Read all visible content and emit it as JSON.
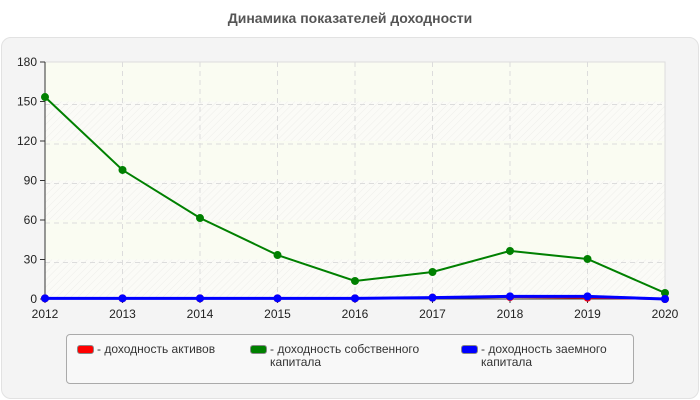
{
  "title": "Динамика показателей доходности",
  "chart_data": {
    "type": "line",
    "title": "Динамика показателей доходности",
    "xlabel": "",
    "ylabel": "",
    "categories": [
      "2012",
      "2013",
      "2014",
      "2015",
      "2016",
      "2017",
      "2018",
      "2019",
      "2020"
    ],
    "ylim": [
      0,
      180
    ],
    "yticks": [
      0,
      30,
      60,
      90,
      120,
      150,
      180
    ],
    "grid": true,
    "legend_position": "bottom",
    "series": [
      {
        "name": "доходность активов",
        "color": "#ff0000",
        "values": [
          0.5,
          0.5,
          0.5,
          0.5,
          0.5,
          1.0,
          1.5,
          1.0,
          0.0
        ]
      },
      {
        "name": "доходность собственного капитала",
        "color": "#008000",
        "values": [
          153.4,
          98.0,
          61.5,
          33.4,
          13.7,
          20.5,
          36.5,
          30.4,
          4.6
        ]
      },
      {
        "name": "доходность заемного капитала",
        "color": "#0000ff",
        "values": [
          0.5,
          0.5,
          0.5,
          0.5,
          0.5,
          1.0,
          2.0,
          2.0,
          0.0
        ]
      }
    ]
  },
  "legend": {
    "items": [
      {
        "label": "- доходность активов",
        "color": "#ff0000"
      },
      {
        "label": "- доходность собственного капитала",
        "color": "#008000"
      },
      {
        "label": "- доходность заемного капитала",
        "color": "#0000ff"
      }
    ]
  }
}
